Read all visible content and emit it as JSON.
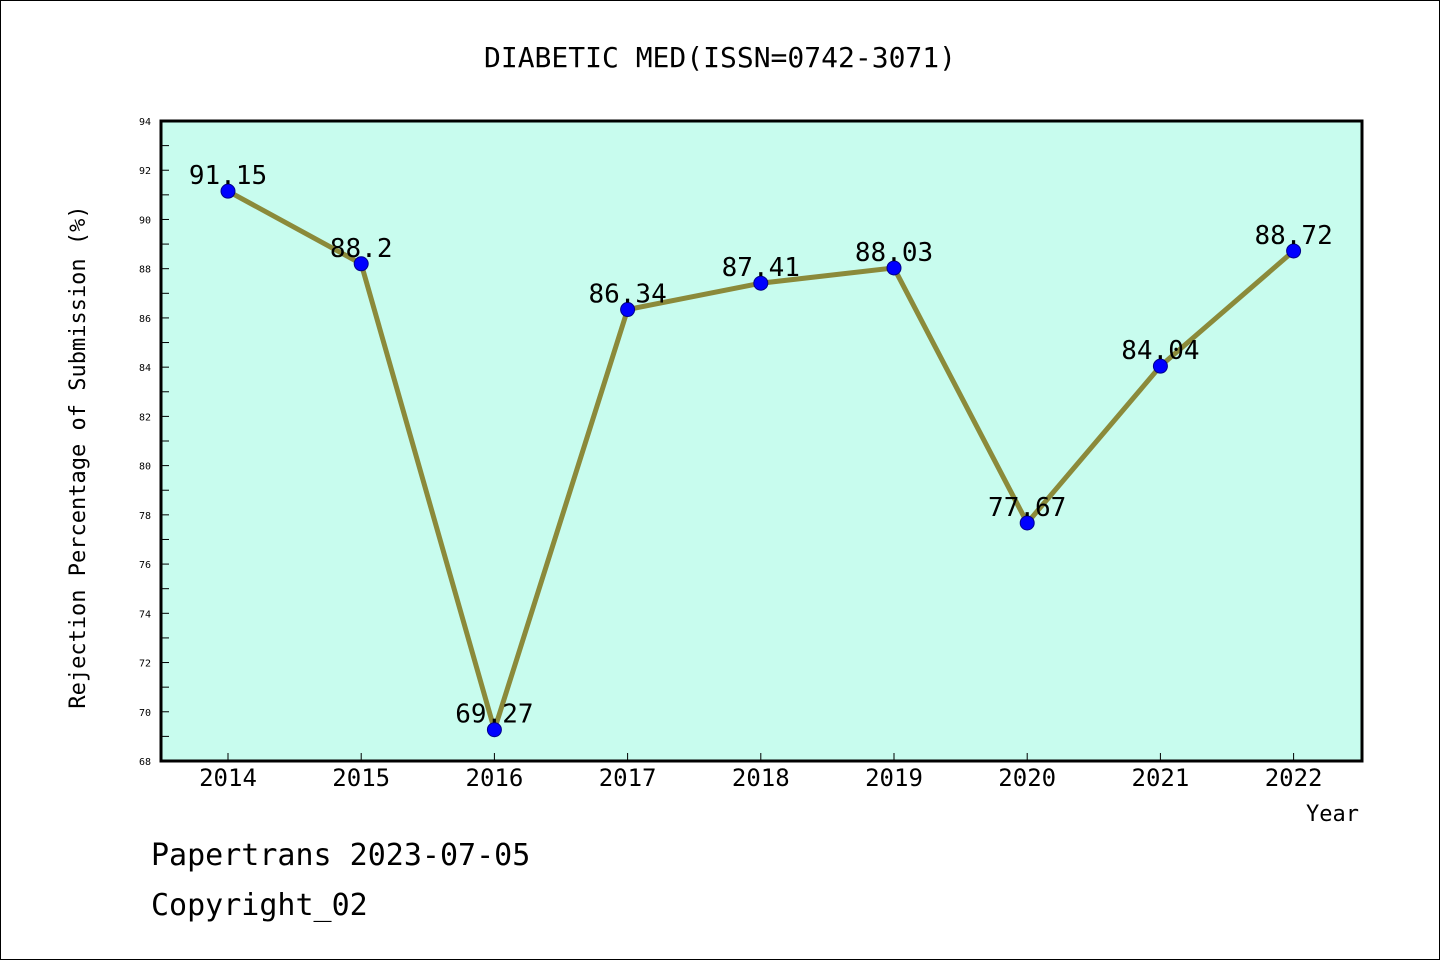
{
  "chart_data": {
    "type": "line",
    "title": "DIABETIC MED(ISSN=0742-3071)",
    "xlabel": "Year",
    "ylabel": "Rejection Percentage of Submission (%)",
    "categories": [
      "2014",
      "2015",
      "2016",
      "2017",
      "2018",
      "2019",
      "2020",
      "2021",
      "2022"
    ],
    "series": [
      {
        "values": [
          91.15,
          88.2,
          69.27,
          86.34,
          87.41,
          88.03,
          77.67,
          84.04,
          88.72
        ],
        "labels": [
          "91.15",
          "88.2",
          "69.27",
          "86.34",
          "87.41",
          "88.03",
          "77.67",
          "84.04",
          "88.72"
        ]
      }
    ],
    "ylim": [
      68,
      94
    ],
    "yticks": [
      "68",
      "70",
      "72",
      "74",
      "76",
      "78",
      "80",
      "82",
      "84",
      "86",
      "88",
      "90",
      "92",
      "94"
    ],
    "grid": false,
    "colors": {
      "plot_background": "#c8fcee",
      "line": "#8b8a3a",
      "marker": "#0000ff",
      "axis": "#000000"
    }
  },
  "footer": {
    "source": "Papertrans 2023-07-05",
    "copyright": "Copyright_02"
  }
}
